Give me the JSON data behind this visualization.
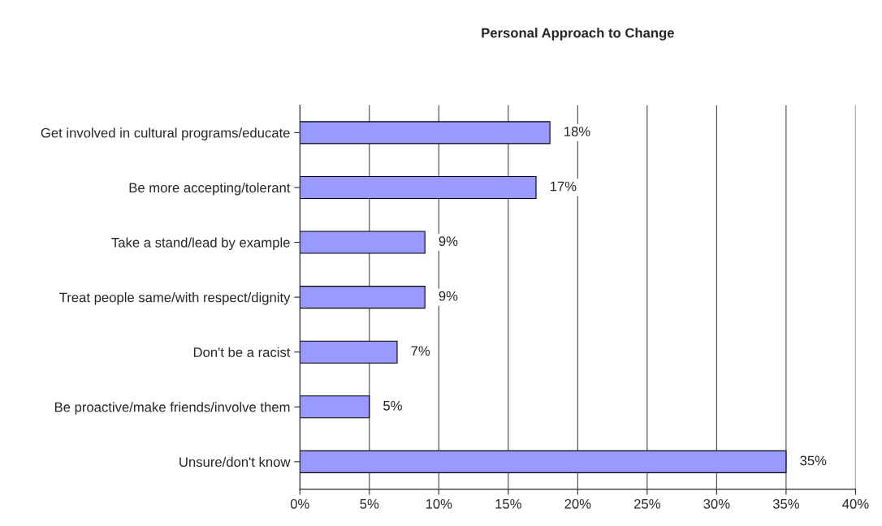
{
  "chart_data": {
    "type": "bar",
    "orientation": "horizontal",
    "title": "Personal Approach to Change",
    "categories": [
      "Get involved in cultural programs/educate",
      "Be more accepting/tolerant",
      "Take a stand/lead by example",
      "Treat people same/with respect/dignity",
      "Don't be a racist",
      "Be proactive/make friends/involve them",
      "Unsure/don't know"
    ],
    "values": [
      18,
      17,
      9,
      9,
      7,
      5,
      35
    ],
    "value_labels": [
      "18%",
      "17%",
      "9%",
      "9%",
      "7%",
      "5%",
      "35%"
    ],
    "color": "#9999ff",
    "xlim": [
      0,
      40
    ],
    "xticks": [
      {
        "value": 0,
        "label": "0%"
      },
      {
        "value": 5,
        "label": "5%"
      },
      {
        "value": 10,
        "label": "10%"
      },
      {
        "value": 15,
        "label": "15%"
      },
      {
        "value": 20,
        "label": "20%"
      },
      {
        "value": 25,
        "label": "25%"
      },
      {
        "value": 30,
        "label": "30%"
      },
      {
        "value": 35,
        "label": "35%"
      },
      {
        "value": 40,
        "label": "40%"
      }
    ],
    "grid": "x"
  }
}
